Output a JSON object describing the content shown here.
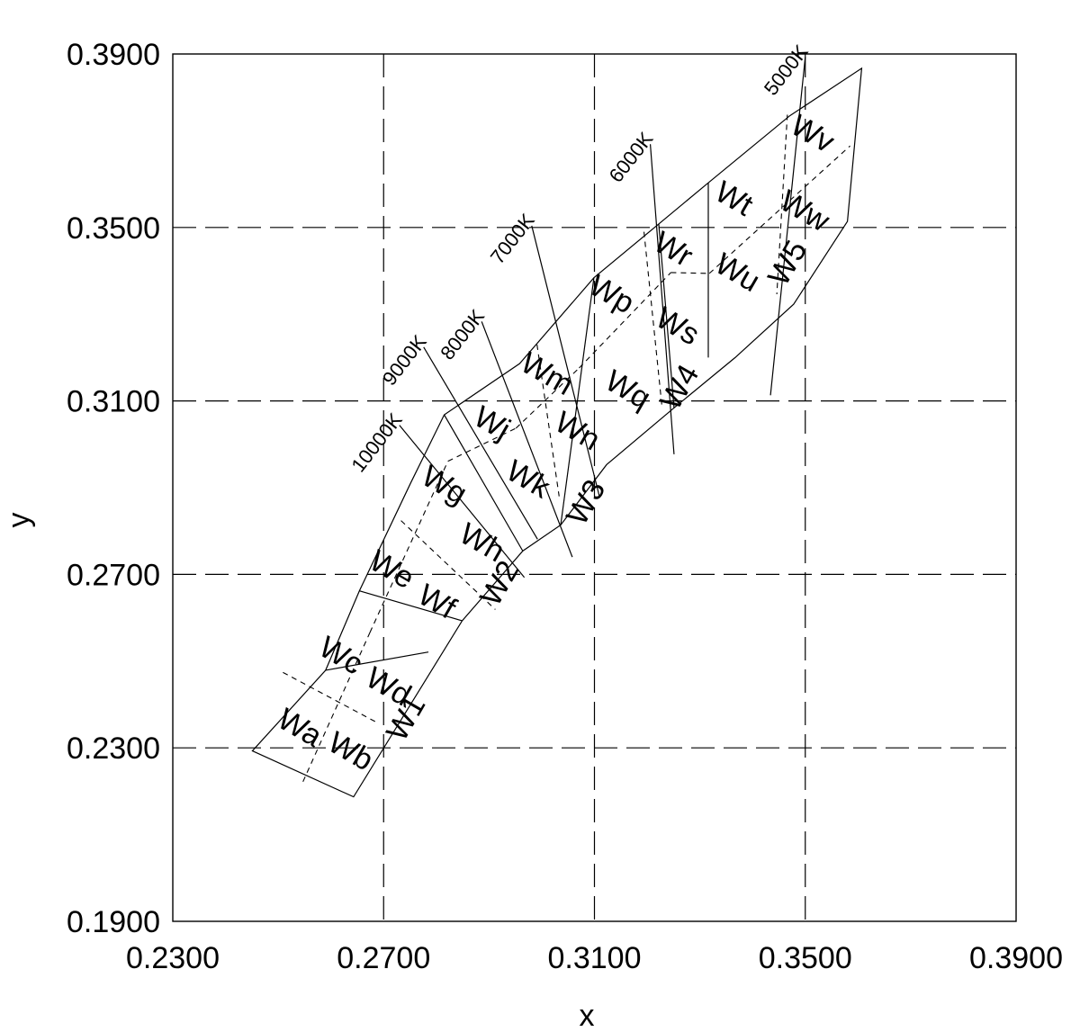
{
  "chart_data": {
    "type": "scatter",
    "title": "",
    "xlabel": "x",
    "ylabel": "y",
    "xlim": [
      0.23,
      0.39
    ],
    "ylim": [
      0.19,
      0.39
    ],
    "grid": true,
    "xticks": [
      "0.2300",
      "0.2700",
      "0.3100",
      "0.3500",
      "0.3900"
    ],
    "yticks": [
      "0.1900",
      "0.2300",
      "0.2700",
      "0.3100",
      "0.3500",
      "0.3900"
    ],
    "xtick_values": [
      0.23,
      0.27,
      0.31,
      0.35,
      0.39
    ],
    "ytick_values": [
      0.19,
      0.23,
      0.27,
      0.31,
      0.35,
      0.39
    ],
    "outline": [
      [
        0.2451,
        0.2293
      ],
      [
        0.2643,
        0.2187
      ],
      [
        0.2849,
        0.2593
      ],
      [
        0.2964,
        0.2754
      ],
      [
        0.3036,
        0.2814
      ],
      [
        0.3123,
        0.2953
      ],
      [
        0.3251,
        0.3084
      ],
      [
        0.3367,
        0.32
      ],
      [
        0.3478,
        0.3323
      ],
      [
        0.358,
        0.3514
      ],
      [
        0.3607,
        0.3867
      ],
      [
        0.347,
        0.3757
      ],
      [
        0.3316,
        0.3603
      ],
      [
        0.3222,
        0.3508
      ],
      [
        0.3099,
        0.3384
      ],
      [
        0.2958,
        0.3186
      ],
      [
        0.2815,
        0.3068
      ],
      [
        0.2751,
        0.291
      ],
      [
        0.2654,
        0.2662
      ],
      [
        0.259,
        0.2479
      ]
    ],
    "solid_lines": [
      [
        [
          0.259,
          0.2479
        ],
        [
          0.2785,
          0.2521
        ]
      ],
      [
        [
          0.2654,
          0.2662
        ],
        [
          0.2849,
          0.2593
        ]
      ],
      [
        [
          0.2815,
          0.3068
        ],
        [
          0.2964,
          0.2754
        ]
      ],
      [
        [
          0.3222,
          0.3508
        ],
        [
          0.3251,
          0.3084
        ]
      ],
      [
        [
          0.3316,
          0.3603
        ],
        [
          0.3316,
          0.32
        ]
      ],
      [
        [
          0.3036,
          0.2814
        ],
        [
          0.3099,
          0.3384
        ]
      ]
    ],
    "dashed_lines": [
      [
        [
          0.2547,
          0.2222
        ],
        [
          0.2674,
          0.2566
        ]
      ],
      [
        [
          0.2674,
          0.2566
        ],
        [
          0.2822,
          0.2961
        ]
      ],
      [
        [
          0.2822,
          0.2961
        ],
        [
          0.2951,
          0.3037
        ]
      ],
      [
        [
          0.2951,
          0.3037
        ],
        [
          0.3071,
          0.3176
        ]
      ],
      [
        [
          0.3071,
          0.3176
        ],
        [
          0.3245,
          0.3396
        ]
      ],
      [
        [
          0.3245,
          0.3396
        ],
        [
          0.3318,
          0.3394
        ]
      ],
      [
        [
          0.3318,
          0.3394
        ],
        [
          0.3585,
          0.3688
        ]
      ],
      [
        [
          0.2509,
          0.2474
        ],
        [
          0.2685,
          0.236
        ]
      ],
      [
        [
          0.2733,
          0.2824
        ],
        [
          0.2912,
          0.2619
        ]
      ],
      [
        [
          0.2991,
          0.323
        ],
        [
          0.3033,
          0.288
        ]
      ],
      [
        [
          0.3194,
          0.349
        ],
        [
          0.3228,
          0.3088
        ]
      ],
      [
        [
          0.3466,
          0.376
        ],
        [
          0.3446,
          0.3346
        ]
      ]
    ],
    "cct_lines": [
      {
        "label": "10000K",
        "from": [
          0.273,
          0.3044
        ],
        "to": [
          0.2967,
          0.2693
        ]
      },
      {
        "label": "9000K",
        "from": [
          0.2776,
          0.3224
        ],
        "to": [
          0.2992,
          0.2781
        ]
      },
      {
        "label": "8000K",
        "from": [
          0.2886,
          0.3283
        ],
        "to": [
          0.3058,
          0.274
        ]
      },
      {
        "label": "7000K",
        "from": [
          0.2981,
          0.3504
        ],
        "to": [
          0.311,
          0.2877
        ]
      },
      {
        "label": "6000K",
        "from": [
          0.3206,
          0.3692
        ],
        "to": [
          0.3251,
          0.2977
        ]
      },
      {
        "label": "5000K",
        "from": [
          0.35,
          0.3893
        ],
        "to": [
          0.3434,
          0.3113
        ]
      }
    ],
    "bins": [
      "Wa",
      "Wb",
      "Wc",
      "Wd",
      "We",
      "Wf",
      "Wg",
      "Wh",
      "Wj",
      "Wk",
      "Wm",
      "Wn",
      "Wp",
      "Wq",
      "Wr",
      "Ws",
      "Wt",
      "Wu",
      "Wv",
      "Ww"
    ],
    "groups": [
      "W1",
      "W2",
      "W3",
      "W4",
      "W5"
    ]
  }
}
